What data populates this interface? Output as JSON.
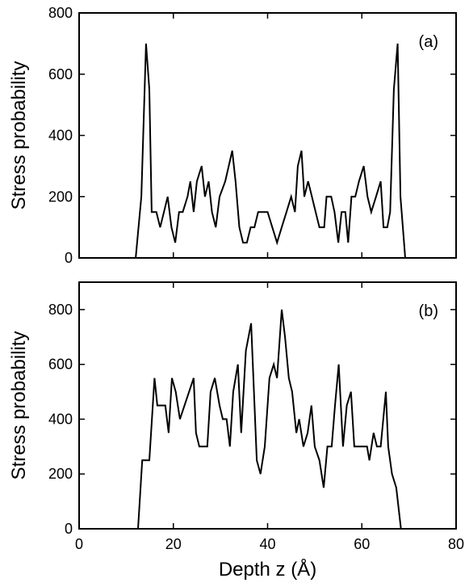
{
  "chart_data": [
    {
      "type": "line",
      "ylabel": "Stress probability",
      "annotation": "(a)",
      "color": "#000000",
      "xlim": [
        0,
        80
      ],
      "xticks": [
        0,
        20,
        40,
        60,
        80
      ],
      "xtick_labels": false,
      "ylim": [
        0,
        800
      ],
      "yticks": [
        0,
        200,
        400,
        600,
        800
      ],
      "x": [
        0,
        12,
        13.2,
        14.2,
        14.9,
        15.4,
        16.4,
        17.2,
        18,
        18.8,
        19.6,
        20.4,
        21.2,
        22,
        23,
        23.6,
        24.3,
        25,
        26,
        26.7,
        27.5,
        28.2,
        29,
        29.8,
        31,
        32.5,
        33.2,
        34,
        34.8,
        35.6,
        36.4,
        37.2,
        38,
        39,
        40,
        41,
        42,
        43,
        44,
        45,
        45.8,
        46.4,
        47.2,
        47.8,
        48.6,
        49.4,
        50.2,
        51,
        52,
        52.5,
        53.5,
        54.2,
        55,
        55.7,
        56.5,
        57.1,
        57.8,
        58.6,
        59.4,
        60.4,
        61.2,
        62,
        63,
        64,
        64.6,
        65.4,
        66,
        66.8,
        67.6,
        68.2,
        69.2,
        80
      ],
      "values": [
        0,
        0,
        200,
        700,
        550,
        150,
        150,
        100,
        150,
        200,
        100,
        50,
        150,
        150,
        200,
        250,
        150,
        250,
        300,
        200,
        250,
        150,
        100,
        200,
        250,
        350,
        250,
        100,
        50,
        50,
        100,
        100,
        150,
        150,
        150,
        100,
        50,
        100,
        150,
        200,
        150,
        300,
        350,
        200,
        250,
        200,
        150,
        100,
        100,
        200,
        200,
        150,
        50,
        150,
        150,
        50,
        200,
        200,
        250,
        300,
        200,
        150,
        200,
        250,
        100,
        100,
        150,
        550,
        700,
        200,
        0,
        0
      ]
    },
    {
      "type": "line",
      "ylabel": "Stress probability",
      "xlabel": "Depth z (Å)",
      "annotation": "(b)",
      "color": "#000000",
      "xlim": [
        0,
        80
      ],
      "xticks": [
        0,
        20,
        40,
        60,
        80
      ],
      "xtick_labels": true,
      "ylim": [
        0,
        900
      ],
      "yticks": [
        0,
        200,
        400,
        600,
        800
      ],
      "x": [
        0,
        12.5,
        13.4,
        14.9,
        16,
        16.6,
        18.3,
        19,
        19.7,
        20.5,
        21.4,
        24.3,
        24.8,
        25.5,
        27.2,
        27.9,
        28.8,
        29.8,
        30.5,
        31.3,
        32,
        32.7,
        33.7,
        34.4,
        35.4,
        36.5,
        37.7,
        38.5,
        39.4,
        40.4,
        41.3,
        42,
        43,
        43.7,
        44.5,
        45.2,
        46.1,
        46.7,
        47.6,
        48.5,
        49.3,
        50,
        51,
        51.9,
        52.7,
        53.6,
        54.3,
        55.1,
        56,
        56.8,
        57.7,
        58.4,
        61.1,
        61.6,
        62.5,
        63.2,
        64,
        65.1,
        65.6,
        66.4,
        67.3,
        68.3,
        80
      ],
      "values": [
        0,
        0,
        250,
        250,
        550,
        450,
        450,
        350,
        550,
        500,
        400,
        550,
        350,
        300,
        300,
        500,
        550,
        450,
        400,
        400,
        300,
        500,
        600,
        350,
        650,
        750,
        250,
        200,
        300,
        550,
        600,
        550,
        800,
        700,
        550,
        500,
        350,
        400,
        300,
        350,
        450,
        300,
        250,
        150,
        300,
        300,
        450,
        600,
        300,
        450,
        500,
        300,
        300,
        250,
        350,
        300,
        300,
        500,
        300,
        200,
        150,
        0,
        0
      ]
    }
  ]
}
